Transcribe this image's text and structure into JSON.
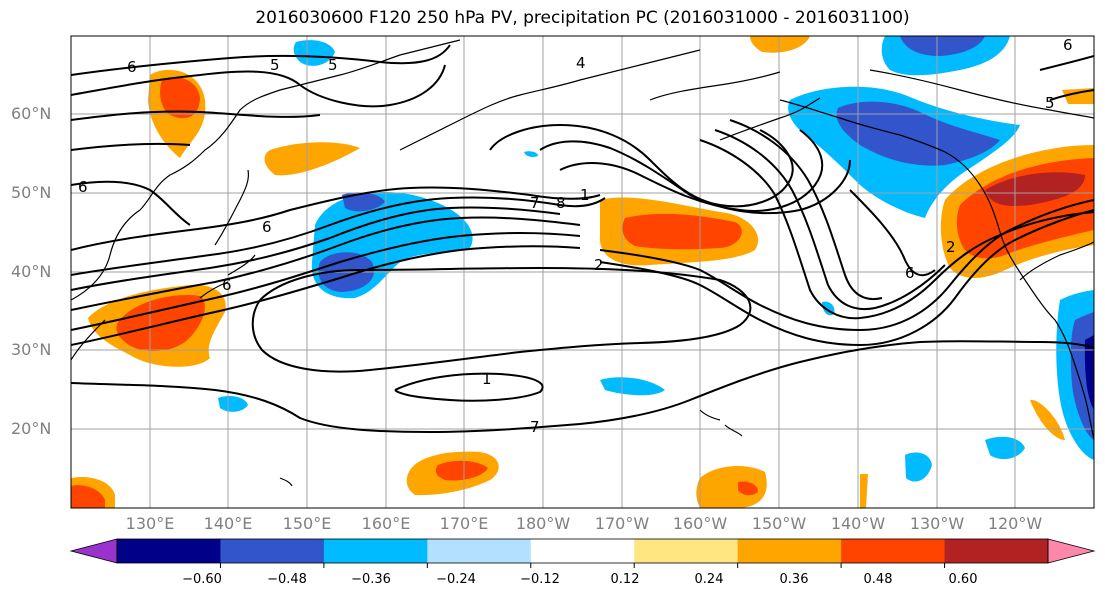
{
  "title": "2016030600 F120 250 hPa PV, precipitation PC (2016031000 - 2016031100)",
  "lat_labels": [
    "60°N",
    "50°N",
    "40°N",
    "30°N",
    "20°N"
  ],
  "lon_labels": [
    "130°E",
    "140°E",
    "150°E",
    "160°E",
    "170°E",
    "180°W",
    "170°W",
    "160°W",
    "150°W",
    "140°W",
    "130°W",
    "120°W"
  ],
  "contour_labels": [
    "6",
    "5",
    "5",
    "4",
    "6",
    "6",
    "7",
    "8",
    "1",
    "2",
    "1",
    "7",
    "6",
    "2",
    "6",
    "5",
    "6"
  ],
  "colorbar": {
    "tick_labels": [
      "−0.60",
      "−0.48",
      "−0.36",
      "−0.24",
      "−0.12",
      "0.12",
      "0.24",
      "0.36",
      "0.48",
      "0.60"
    ],
    "colors": [
      "#9933cc",
      "#000088",
      "#3355cc",
      "#00bbff",
      "#b3e0ff",
      "#ffffff",
      "#ffe680",
      "#ffa500",
      "#ff4400",
      "#b22222",
      "#ff88aa"
    ]
  },
  "colors": {
    "contour": "#000000",
    "coastline": "#000000",
    "grid": "#a0a0a0",
    "label": "#808080"
  }
}
